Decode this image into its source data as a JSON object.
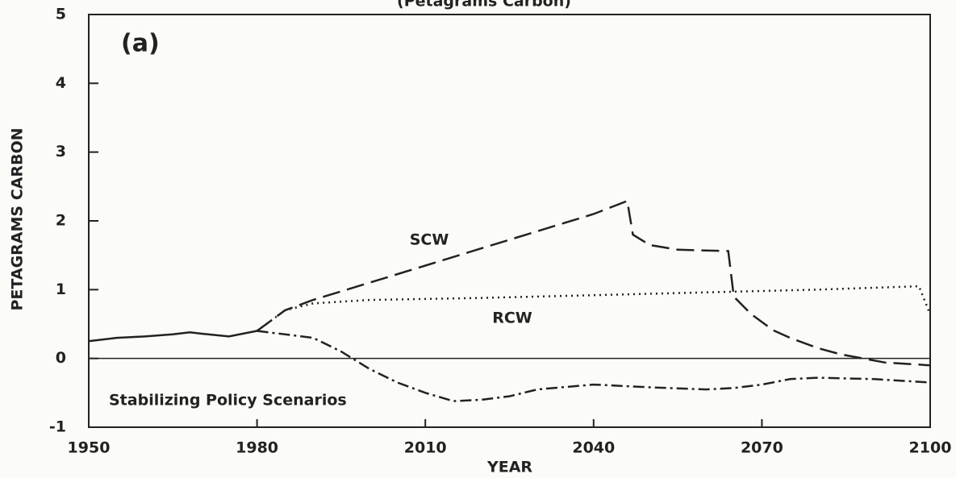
{
  "chart_data": {
    "type": "line",
    "title": "(Petagrams Carbon)",
    "panel_label": "(a)",
    "xlabel": "YEAR",
    "ylabel": "PETAGRAMS CARBON",
    "annotations": [
      "SCW",
      "RCW",
      "Stabilizing Policy Scenarios"
    ],
    "xlim": [
      1950,
      2100
    ],
    "xticks": [
      1950,
      1980,
      2010,
      2040,
      2070,
      2100
    ],
    "ylim": [
      -1,
      5
    ],
    "yticks": [
      -1,
      0,
      1,
      2,
      3,
      4,
      5
    ],
    "zero_line": true,
    "series": [
      {
        "name": null,
        "color": "#222",
        "style": "solid",
        "x": [
          1950,
          1955,
          1960,
          1965,
          1968,
          1970,
          1975,
          1980
        ],
        "values": [
          0.25,
          0.3,
          0.32,
          0.35,
          0.38,
          0.36,
          0.32,
          0.4
        ]
      },
      {
        "name": "SCW",
        "color": "#222",
        "style": "dashed",
        "x": [
          1980,
          1985,
          1990,
          2000,
          2010,
          2020,
          2030,
          2040,
          2046,
          2047,
          2050,
          2055,
          2064,
          2065,
          2068,
          2072,
          2075,
          2080,
          2084,
          2092,
          2100
        ],
        "values": [
          0.4,
          0.7,
          0.85,
          1.1,
          1.35,
          1.6,
          1.85,
          2.1,
          2.29,
          1.8,
          1.65,
          1.58,
          1.56,
          0.9,
          0.65,
          0.41,
          0.3,
          0.15,
          0.06,
          -0.06,
          -0.1
        ]
      },
      {
        "name": "RCW",
        "color": "#222",
        "style": "dotted",
        "x": [
          1980,
          1985,
          1990,
          2000,
          2020,
          2040,
          2060,
          2080,
          2098,
          2100
        ],
        "values": [
          0.4,
          0.7,
          0.8,
          0.85,
          0.88,
          0.92,
          0.96,
          1.0,
          1.05,
          0.64
        ]
      },
      {
        "name": "Stabilizing Policy Scenarios",
        "color": "#222",
        "style": "dashdot",
        "x": [
          1980,
          1990,
          1995,
          2000,
          2005,
          2010,
          2015,
          2020,
          2025,
          2030,
          2040,
          2050,
          2060,
          2065,
          2070,
          2075,
          2080,
          2090,
          2100
        ],
        "values": [
          0.4,
          0.3,
          0.1,
          -0.15,
          -0.35,
          -0.5,
          -0.62,
          -0.6,
          -0.55,
          -0.45,
          -0.38,
          -0.42,
          -0.45,
          -0.43,
          -0.38,
          -0.3,
          -0.28,
          -0.3,
          -0.35
        ]
      }
    ]
  }
}
